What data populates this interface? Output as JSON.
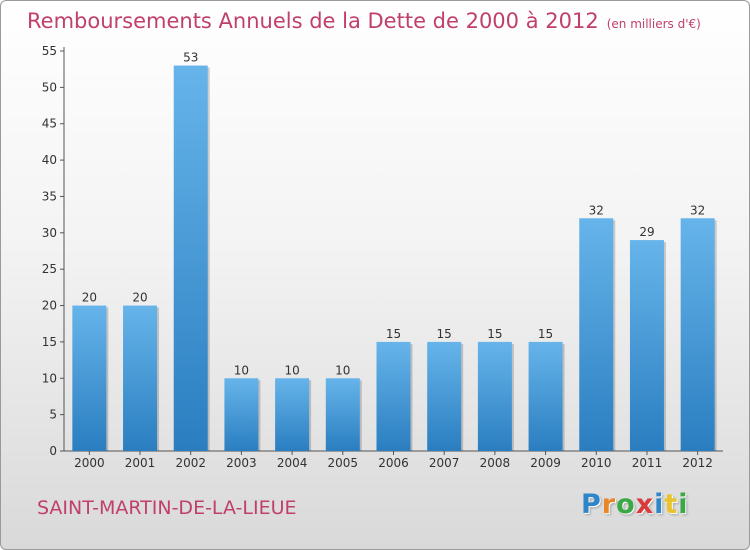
{
  "title": "Remboursements Annuels de la Dette de 2000 à 2012",
  "unit": "(en milliers d'€)",
  "town": "SAINT-MARTIN-DE-LA-LIEUE",
  "logo": {
    "letters": [
      "P",
      "r",
      "o",
      "x",
      "i",
      "t",
      "i"
    ],
    "colors": [
      "#2e86c8",
      "#e8862a",
      "#3aa845",
      "#d93a3a",
      "#2e86c8",
      "#e8c42a",
      "#3aa845"
    ]
  },
  "colors": {
    "bar": "#3d97d8",
    "bar_light": "#66b4ea",
    "bar_dark": "#2a7ec0",
    "accent": "#c0406a"
  },
  "chart_data": {
    "type": "bar",
    "categories": [
      "2000",
      "2001",
      "2002",
      "2003",
      "2004",
      "2005",
      "2006",
      "2007",
      "2008",
      "2009",
      "2010",
      "2011",
      "2012"
    ],
    "values": [
      20,
      20,
      53,
      10,
      10,
      10,
      15,
      15,
      15,
      15,
      32,
      29,
      32
    ],
    "data_labels": [
      "20",
      "20",
      "53",
      "10",
      "10",
      "10",
      "15",
      "15",
      "15",
      "15",
      "32",
      "29",
      "32"
    ],
    "ylim": [
      0,
      55
    ],
    "yticks": [
      0,
      5,
      10,
      15,
      20,
      25,
      30,
      35,
      40,
      45,
      50,
      55
    ],
    "grid": false
  }
}
